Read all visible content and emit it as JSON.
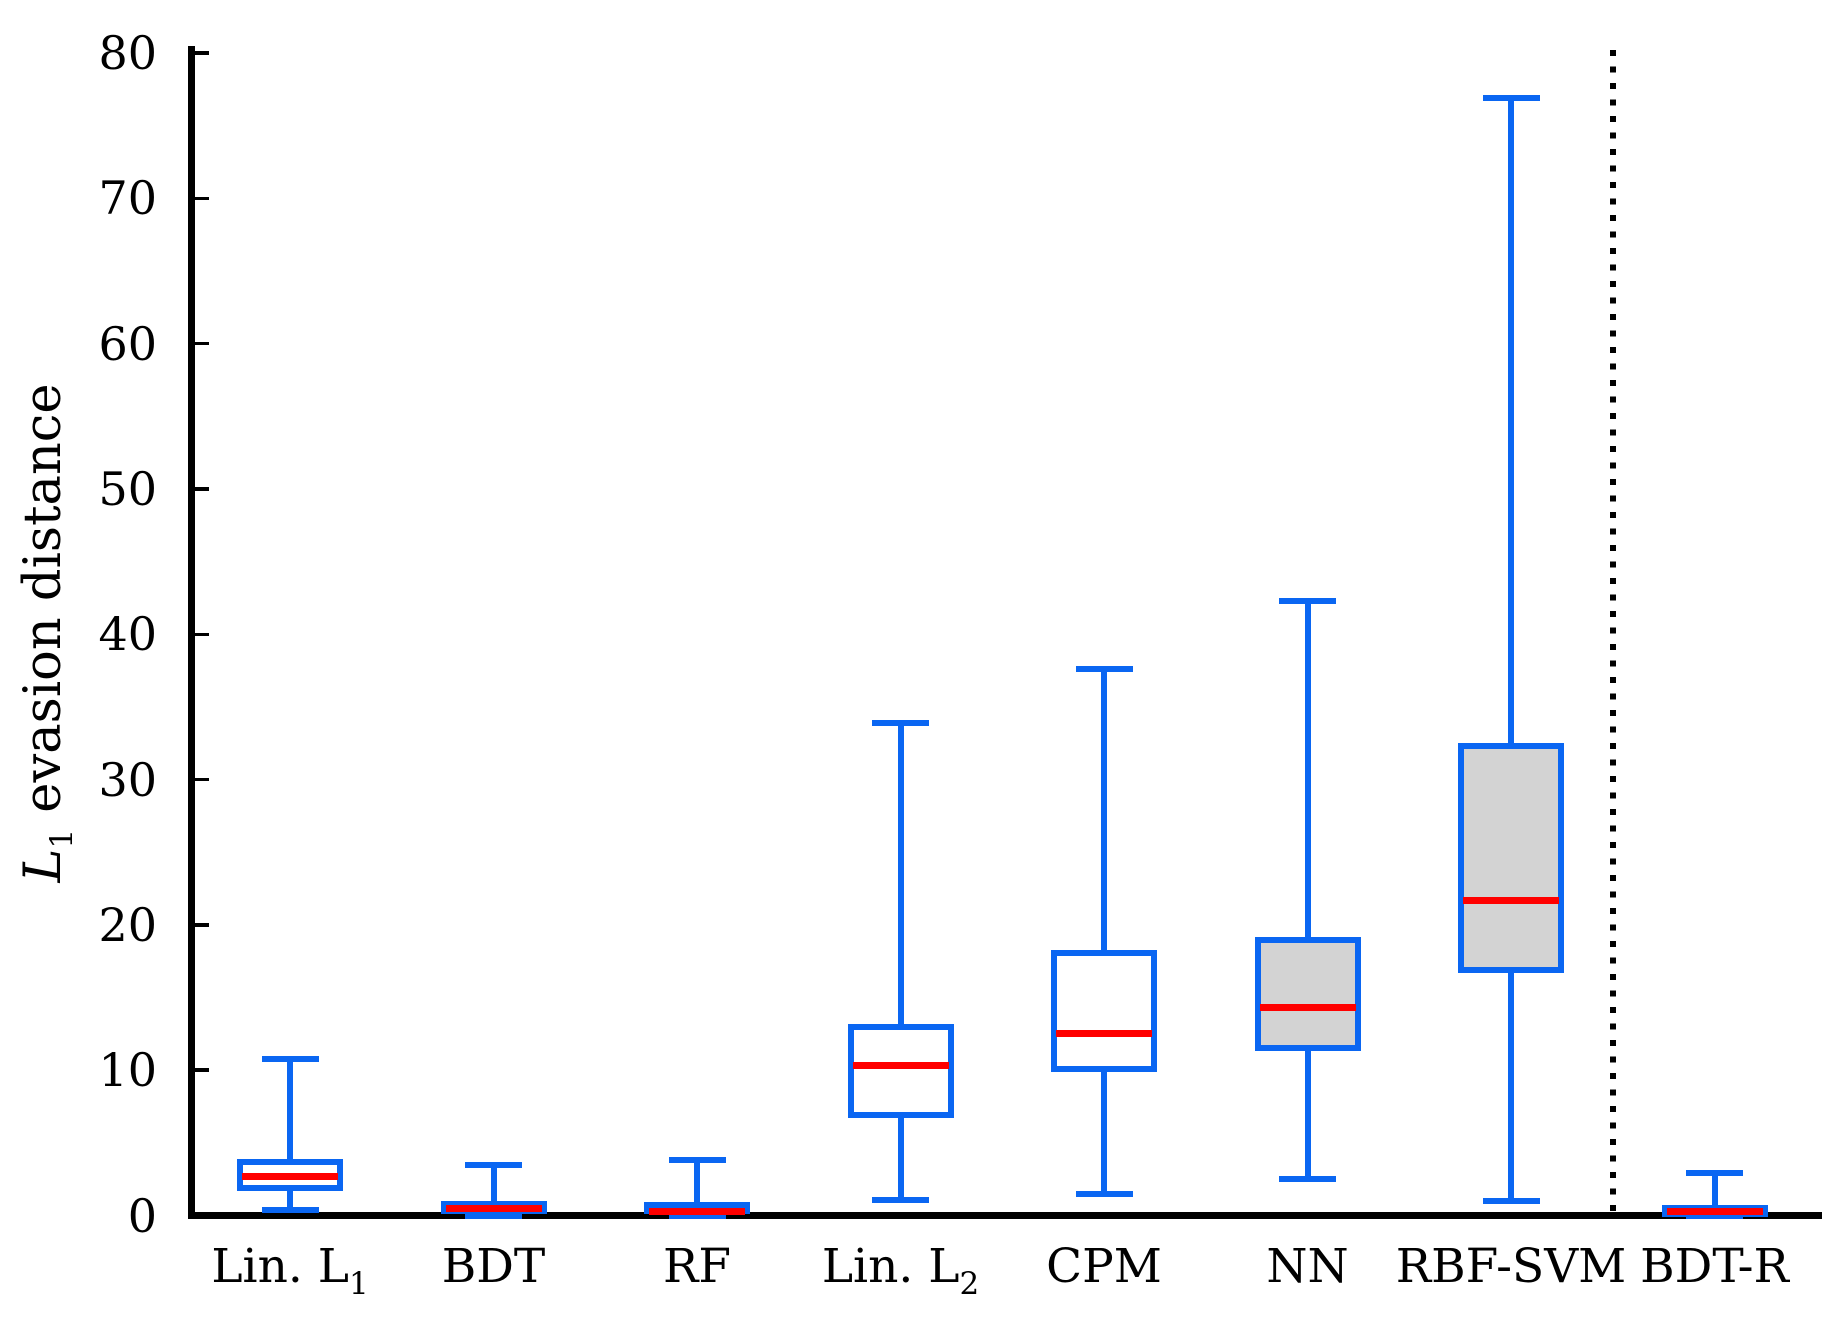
{
  "figure": {
    "background": "#ffffff"
  },
  "chart_data": {
    "type": "box",
    "title": "",
    "xlabel": "",
    "ylabel": {
      "italic": "L",
      "sub": "1",
      "rest": " evasion distance"
    },
    "ylim": [
      0,
      80
    ],
    "yticks": [
      0,
      10,
      20,
      30,
      40,
      50,
      60,
      70,
      80
    ],
    "grid": false,
    "legend": "none",
    "axis_color": "#000000",
    "box_edge_color": "#0a66f2",
    "median_color": "#ff0000",
    "fill_colors": {
      "white": "#ffffff",
      "gray": "#d3d3d3"
    },
    "separator": {
      "style": "dotted",
      "color": "#000000",
      "between": [
        "RBF-SVM",
        "BDT-R"
      ],
      "after_index": 6
    },
    "categories": [
      {
        "main": "Lin. L",
        "sub": "1"
      },
      {
        "main": "BDT"
      },
      {
        "main": "RF"
      },
      {
        "main": "Lin. L",
        "sub": "2"
      },
      {
        "main": "CPM"
      },
      {
        "main": "NN"
      },
      {
        "main": "RBF-SVM"
      },
      {
        "main": "BDT-R"
      }
    ],
    "series": [
      {
        "label": "Lin. L1",
        "whislo": 0.4,
        "q1": 1.7,
        "med": 2.7,
        "q3": 3.9,
        "whishi": 10.8,
        "fill": "white"
      },
      {
        "label": "BDT",
        "whislo": 0.0,
        "q1": 0.1,
        "med": 0.45,
        "q3": 1.0,
        "whishi": 3.5,
        "fill": "white"
      },
      {
        "label": "RF",
        "whislo": 0.0,
        "q1": 0.1,
        "med": 0.3,
        "q3": 0.95,
        "whishi": 3.85,
        "fill": "white"
      },
      {
        "label": "Lin. L2",
        "whislo": 1.1,
        "q1": 6.7,
        "med": 10.3,
        "q3": 13.2,
        "whishi": 33.9,
        "fill": "white"
      },
      {
        "label": "CPM",
        "whislo": 1.5,
        "q1": 9.9,
        "med": 12.5,
        "q3": 18.3,
        "whishi": 37.6,
        "fill": "white"
      },
      {
        "label": "NN",
        "whislo": 2.5,
        "q1": 11.3,
        "med": 14.3,
        "q3": 19.2,
        "whishi": 42.3,
        "fill": "gray"
      },
      {
        "label": "RBF-SVM",
        "whislo": 1.0,
        "q1": 16.7,
        "med": 21.7,
        "q3": 32.5,
        "whishi": 76.9,
        "fill": "gray"
      },
      {
        "label": "BDT-R",
        "whislo": 0.0,
        "q1": 0.1,
        "med": 0.25,
        "q3": 0.7,
        "whishi": 2.9,
        "fill": "white"
      }
    ]
  }
}
